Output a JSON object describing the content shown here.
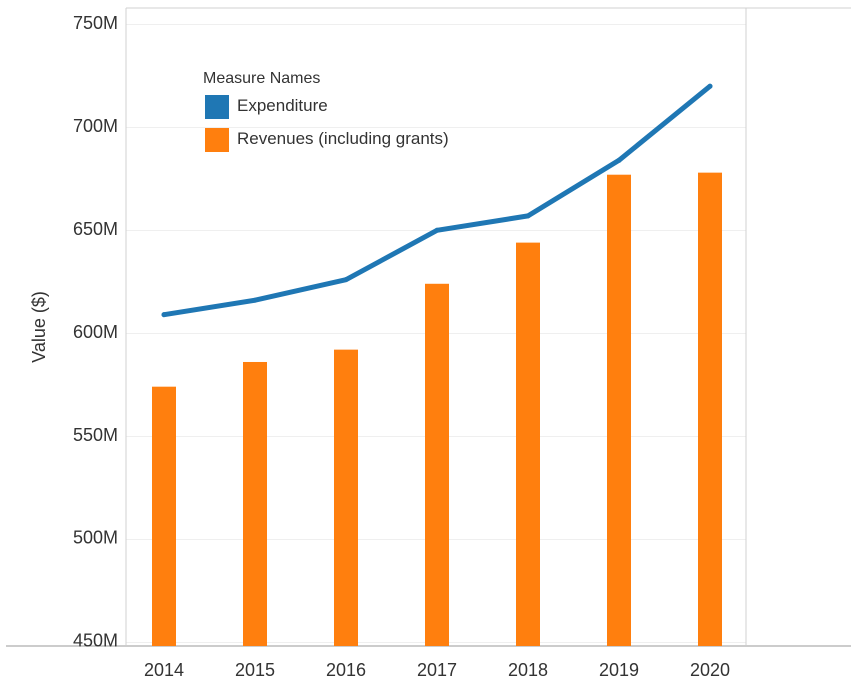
{
  "chart_data": {
    "type": "bar",
    "categories": [
      "2014",
      "2015",
      "2016",
      "2017",
      "2018",
      "2019",
      "2020"
    ],
    "series": [
      {
        "name": "Revenues (including grants)",
        "type": "bar",
        "color": "#ff7f0e",
        "values": [
          574,
          586,
          592,
          624,
          644,
          677,
          678
        ]
      },
      {
        "name": "Expenditure",
        "type": "line",
        "color": "#1f77b4",
        "values": [
          609,
          616,
          626,
          650,
          657,
          684,
          720
        ]
      }
    ],
    "ylabel": "Value ($)",
    "xlabel": "",
    "ylim": [
      448,
      758
    ],
    "y_ticks": [
      450,
      500,
      550,
      600,
      650,
      700,
      750
    ],
    "y_tick_labels": [
      "450M",
      "500M",
      "550M",
      "600M",
      "650M",
      "700M",
      "750M"
    ],
    "grid": true,
    "legend": {
      "title": "Measure Names",
      "placement": "top-left"
    }
  }
}
